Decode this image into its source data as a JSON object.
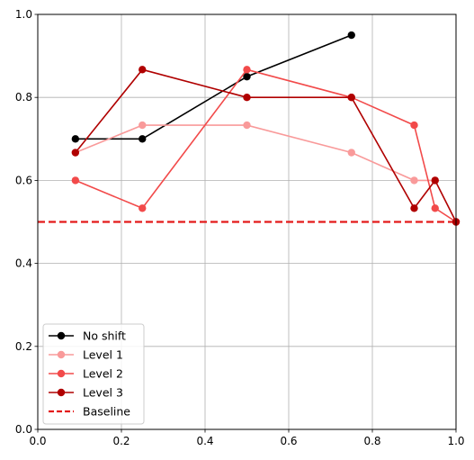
{
  "chart_data": {
    "type": "line",
    "title": "",
    "xlabel": "",
    "ylabel": "",
    "xlim": [
      0,
      1
    ],
    "ylim": [
      0,
      1
    ],
    "xticks": [
      0.0,
      0.2,
      0.4,
      0.6,
      0.8,
      1.0
    ],
    "yticks": [
      0.0,
      0.2,
      0.4,
      0.6,
      0.8,
      1.0
    ],
    "xtick_labels": [
      "0.0",
      "0.2",
      "0.4",
      "0.6",
      "0.8",
      "1.0"
    ],
    "ytick_labels": [
      "0.0",
      "0.2",
      "0.4",
      "0.6",
      "0.8",
      "1.0"
    ],
    "grid": true,
    "legend_position": "lower-left",
    "series": [
      {
        "name": "No shift",
        "color": "#000000",
        "marker": "circle",
        "x": [
          0.09,
          0.25,
          0.5,
          0.75
        ],
        "y": [
          0.7,
          0.7,
          0.85,
          0.95
        ]
      },
      {
        "name": "Level 1",
        "color": "#f99a9a",
        "marker": "circle",
        "x": [
          0.09,
          0.25,
          0.5,
          0.75,
          0.9,
          0.95
        ],
        "y": [
          0.667,
          0.733,
          0.733,
          0.667,
          0.6,
          0.6
        ]
      },
      {
        "name": "Level 2",
        "color": "#f24a4a",
        "marker": "circle",
        "x": [
          0.09,
          0.25,
          0.5,
          0.75,
          0.9,
          0.95,
          1.0
        ],
        "y": [
          0.6,
          0.533,
          0.867,
          0.8,
          0.733,
          0.533,
          0.5
        ]
      },
      {
        "name": "Level 3",
        "color": "#b00000",
        "marker": "circle",
        "x": [
          0.09,
          0.25,
          0.5,
          0.75,
          0.9,
          0.95,
          1.0
        ],
        "y": [
          0.667,
          0.867,
          0.8,
          0.8,
          0.533,
          0.6,
          0.5
        ]
      }
    ],
    "baseline": {
      "name": "Baseline",
      "value": 0.5,
      "color": "#e31a1a",
      "style": "dashed"
    }
  }
}
